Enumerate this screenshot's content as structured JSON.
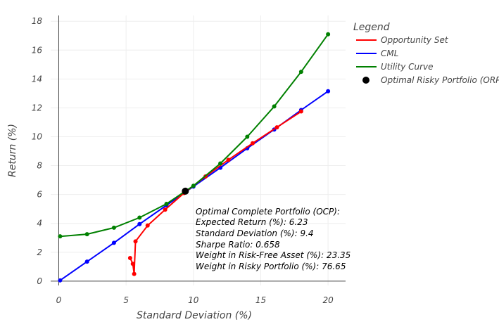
{
  "chart_data": {
    "type": "scatter",
    "title": "",
    "xlabel": "Standard Deviation (%)",
    "ylabel": "Return (%)",
    "xlim": [
      -0.6,
      21.3
    ],
    "ylim": [
      -0.3,
      18.4
    ],
    "x_ticks": [
      0,
      5,
      10,
      15,
      20
    ],
    "y_ticks": [
      0,
      2,
      4,
      6,
      8,
      10,
      12,
      14,
      16,
      18
    ],
    "grid": true,
    "legend": {
      "title": "Legend",
      "placement": "top-right",
      "items": [
        {
          "label": "Opportunity Set",
          "color": "#ff0000",
          "kind": "line"
        },
        {
          "label": "CML",
          "color": "#0000ff",
          "kind": "line"
        },
        {
          "label": "Utility Curve",
          "color": "#008000",
          "kind": "line"
        },
        {
          "label": "Optimal Risky Portfolio (ORP)",
          "color": "#000000",
          "kind": "marker"
        }
      ]
    },
    "series": [
      {
        "name": "CML",
        "color": "#0000ff",
        "x": [
          0.1,
          2.1,
          4.1,
          6.0,
          8.0,
          10.0,
          12.0,
          14.0,
          16.0,
          18.0,
          20.0
        ],
        "y": [
          0.05,
          1.35,
          2.65,
          3.95,
          5.25,
          6.55,
          7.85,
          9.2,
          10.5,
          11.85,
          13.15
        ]
      },
      {
        "name": "Opportunity Set",
        "color": "#ff0000",
        "x": [
          5.3,
          5.5,
          5.6,
          5.7,
          6.6,
          7.9,
          9.3,
          10.9,
          12.6,
          14.4,
          16.2,
          18.0
        ],
        "y": [
          1.6,
          1.2,
          0.5,
          2.75,
          3.85,
          4.95,
          6.1,
          7.25,
          8.4,
          9.55,
          10.65,
          11.75
        ]
      },
      {
        "name": "Utility Curve",
        "color": "#008000",
        "x": [
          0.1,
          2.1,
          4.1,
          6.0,
          8.0,
          10.0,
          12.0,
          14.0,
          16.0,
          18.0,
          20.0
        ],
        "y": [
          3.1,
          3.25,
          3.7,
          4.4,
          5.35,
          6.6,
          8.15,
          10.0,
          12.1,
          14.5,
          17.1
        ]
      }
    ],
    "orp": {
      "name": "Optimal Risky Portfolio (ORP)",
      "x": 9.4,
      "y": 6.23,
      "color": "#000000"
    },
    "annotation": {
      "lines": [
        "Optimal Complete Portfolio (OCP):",
        "Expected Return (%): 6.23",
        "Standard Deviation (%): 9.4",
        "Sharpe Ratio: 0.658",
        "Weight in Risk-Free Asset (%): 23.35",
        "Weight in Risky Portfolio (%): 76.65"
      ]
    }
  }
}
